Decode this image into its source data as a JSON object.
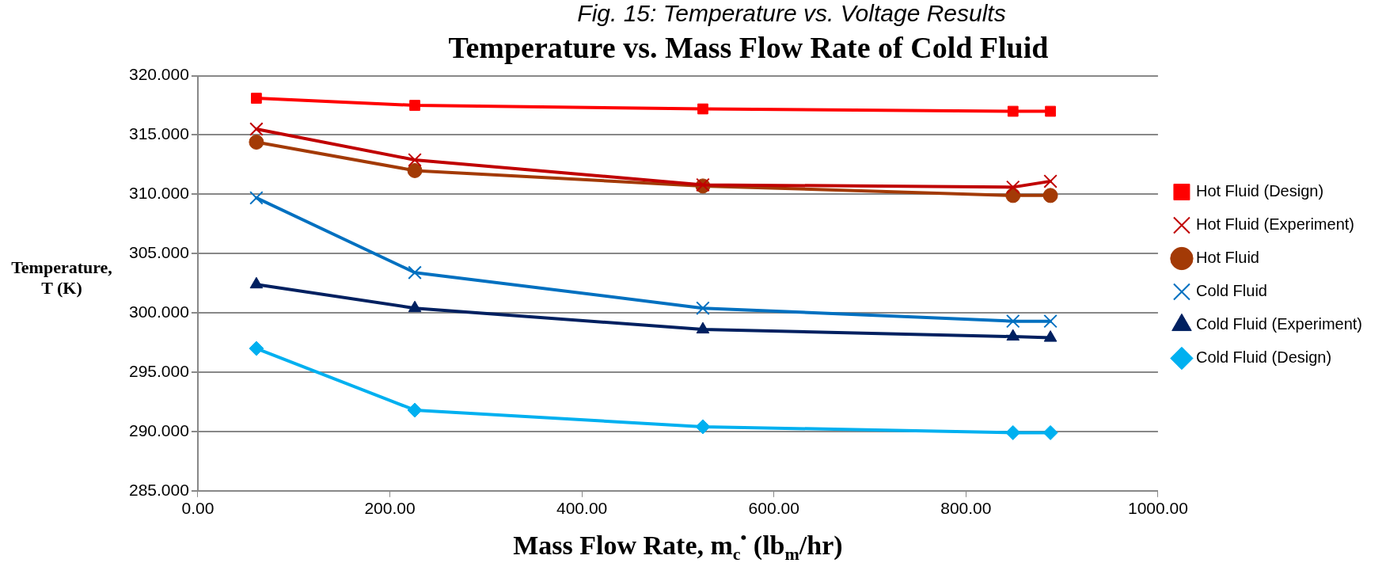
{
  "chart_data": {
    "type": "line",
    "title": "Temperature vs. Mass Flow Rate of Cold Fluid",
    "annotations": [
      "Fig. 15: Temperature vs. Voltage Results"
    ],
    "xlabel": "Mass Flow Rate, m$_{c}$$^{•}$ (lb$_{m}$/hr)",
    "ylabel": "Temperature, T (K)",
    "x": [
      61,
      226,
      526,
      849,
      888
    ],
    "series": [
      {
        "name": "Hot Fluid (Design)",
        "color": "#ff0000",
        "marker": "square",
        "values": [
          318.1,
          317.5,
          317.2,
          317.0,
          317.0
        ]
      },
      {
        "name": "Hot Fluid (Experiment)",
        "color": "#c00000",
        "marker": "cross",
        "values": [
          315.5,
          312.9,
          310.8,
          310.6,
          311.1
        ]
      },
      {
        "name": "Hot Fluid",
        "color": "#a33a06",
        "marker": "circle",
        "values": [
          314.4,
          312.0,
          310.7,
          309.9,
          309.9
        ]
      },
      {
        "name": "Cold Fluid",
        "color": "#0070c0",
        "marker": "cross",
        "values": [
          309.7,
          303.4,
          300.4,
          299.3,
          299.3
        ]
      },
      {
        "name": "Cold Fluid (Experiment)",
        "color": "#002060",
        "marker": "triangle",
        "values": [
          302.4,
          300.4,
          298.6,
          298.0,
          297.9
        ]
      },
      {
        "name": "Cold Fluid (Design)",
        "color": "#00b0f0",
        "marker": "diamond",
        "values": [
          297.0,
          291.8,
          290.4,
          289.9,
          289.9
        ]
      }
    ],
    "xlim": [
      0,
      1000
    ],
    "xticks": [
      {
        "value": 0,
        "label": "0.00"
      },
      {
        "value": 200,
        "label": "200.00"
      },
      {
        "value": 400,
        "label": "400.00"
      },
      {
        "value": 600,
        "label": "600.00"
      },
      {
        "value": 800,
        "label": "800.00"
      },
      {
        "value": 1000,
        "label": "1000.00"
      }
    ],
    "ylim": [
      285,
      320
    ],
    "yticks": [
      {
        "value": 285,
        "label": "285.000"
      },
      {
        "value": 290,
        "label": "290.000"
      },
      {
        "value": 295,
        "label": "295.000"
      },
      {
        "value": 300,
        "label": "300.000"
      },
      {
        "value": 305,
        "label": "305.000"
      },
      {
        "value": 310,
        "label": "310.000"
      },
      {
        "value": 315,
        "label": "315.000"
      },
      {
        "value": 320,
        "label": "320.000"
      }
    ],
    "grid": "y",
    "legend": "right",
    "line_style": "solid"
  }
}
